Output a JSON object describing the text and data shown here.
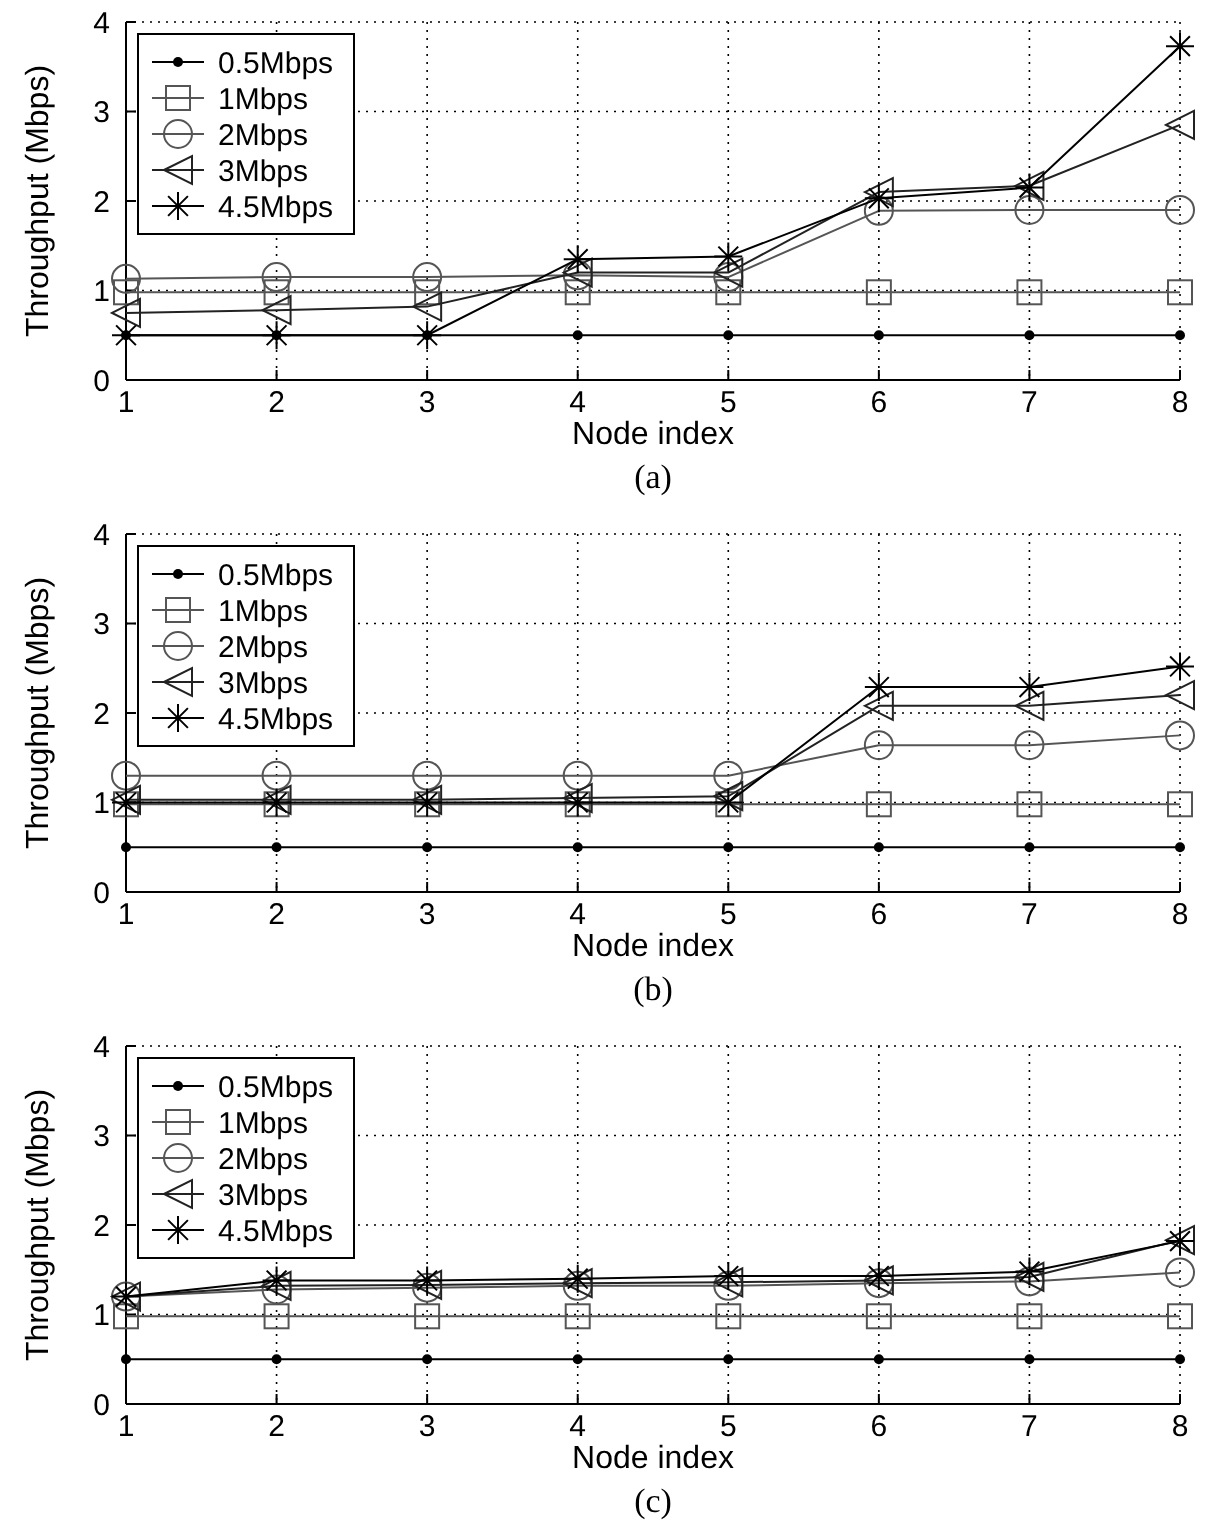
{
  "chart_data": [
    {
      "type": "line",
      "title": "(a)",
      "xlabel": "Node index",
      "ylabel": "Throughput (Mbps)",
      "x": [
        1,
        2,
        3,
        4,
        5,
        6,
        7,
        8
      ],
      "xlim": [
        1,
        8
      ],
      "xticks": [
        1,
        2,
        3,
        4,
        5,
        6,
        7,
        8
      ],
      "ylim": [
        0,
        4
      ],
      "yticks": [
        0,
        1,
        2,
        3,
        4
      ],
      "grid": true,
      "legend": "top left",
      "line_style": "solid",
      "series": [
        {
          "name": "0.5Mbps",
          "color": "#000000",
          "marker": "point",
          "values": [
            0.5,
            0.5,
            0.5,
            0.5,
            0.5,
            0.5,
            0.5,
            0.5
          ]
        },
        {
          "name": "1Mbps",
          "color": "#555555",
          "marker": "square",
          "values": [
            0.98,
            0.98,
            0.98,
            0.98,
            0.98,
            0.98,
            0.98,
            0.98
          ]
        },
        {
          "name": "2Mbps",
          "color": "#555555",
          "marker": "circle",
          "values": [
            1.13,
            1.15,
            1.15,
            1.17,
            1.15,
            1.89,
            1.9,
            1.9
          ]
        },
        {
          "name": "3Mbps",
          "color": "#222222",
          "marker": "triangle",
          "values": [
            0.75,
            0.78,
            0.82,
            1.2,
            1.2,
            2.1,
            2.17,
            2.85
          ]
        },
        {
          "name": "4.5Mbps",
          "color": "#000000",
          "marker": "cross",
          "values": [
            0.5,
            0.5,
            0.5,
            1.35,
            1.38,
            2.03,
            2.15,
            3.73
          ]
        }
      ]
    },
    {
      "type": "line",
      "title": "(b)",
      "xlabel": "Node index",
      "ylabel": "Throughput (Mbps)",
      "x": [
        1,
        2,
        3,
        4,
        5,
        6,
        7,
        8
      ],
      "xlim": [
        1,
        8
      ],
      "xticks": [
        1,
        2,
        3,
        4,
        5,
        6,
        7,
        8
      ],
      "ylim": [
        0,
        4
      ],
      "yticks": [
        0,
        1,
        2,
        3,
        4
      ],
      "grid": true,
      "legend": "top left",
      "line_style": "solid",
      "series": [
        {
          "name": "0.5Mbps",
          "color": "#000000",
          "marker": "point",
          "values": [
            0.5,
            0.5,
            0.5,
            0.5,
            0.5,
            0.5,
            0.5,
            0.5
          ]
        },
        {
          "name": "1Mbps",
          "color": "#555555",
          "marker": "square",
          "values": [
            0.98,
            0.98,
            0.98,
            0.98,
            0.98,
            0.98,
            0.98,
            0.98
          ]
        },
        {
          "name": "2Mbps",
          "color": "#555555",
          "marker": "circle",
          "values": [
            1.3,
            1.3,
            1.3,
            1.3,
            1.3,
            1.64,
            1.64,
            1.75
          ]
        },
        {
          "name": "3Mbps",
          "color": "#222222",
          "marker": "triangle",
          "values": [
            1.03,
            1.03,
            1.03,
            1.05,
            1.07,
            2.08,
            2.08,
            2.2
          ]
        },
        {
          "name": "4.5Mbps",
          "color": "#000000",
          "marker": "cross",
          "values": [
            1.0,
            1.0,
            1.0,
            1.0,
            1.0,
            2.29,
            2.29,
            2.52
          ]
        }
      ]
    },
    {
      "type": "line",
      "title": "(c)",
      "xlabel": "Node index",
      "ylabel": "Throughput (Mbps)",
      "x": [
        1,
        2,
        3,
        4,
        5,
        6,
        7,
        8
      ],
      "xlim": [
        1,
        8
      ],
      "xticks": [
        1,
        2,
        3,
        4,
        5,
        6,
        7,
        8
      ],
      "ylim": [
        0,
        4
      ],
      "yticks": [
        0,
        1,
        2,
        3,
        4
      ],
      "grid": true,
      "legend": "top left",
      "line_style": "solid",
      "series": [
        {
          "name": "0.5Mbps",
          "color": "#000000",
          "marker": "point",
          "values": [
            0.5,
            0.5,
            0.5,
            0.5,
            0.5,
            0.5,
            0.5,
            0.5
          ]
        },
        {
          "name": "1Mbps",
          "color": "#555555",
          "marker": "square",
          "values": [
            0.98,
            0.98,
            0.98,
            0.98,
            0.98,
            0.98,
            0.98,
            0.98
          ]
        },
        {
          "name": "2Mbps",
          "color": "#555555",
          "marker": "circle",
          "values": [
            1.2,
            1.28,
            1.3,
            1.32,
            1.32,
            1.35,
            1.37,
            1.47
          ]
        },
        {
          "name": "3Mbps",
          "color": "#222222",
          "marker": "triangle",
          "values": [
            1.2,
            1.32,
            1.33,
            1.35,
            1.36,
            1.38,
            1.42,
            1.83
          ]
        },
        {
          "name": "4.5Mbps",
          "color": "#000000",
          "marker": "cross",
          "values": [
            1.2,
            1.38,
            1.38,
            1.4,
            1.43,
            1.43,
            1.48,
            1.82
          ]
        }
      ]
    }
  ]
}
